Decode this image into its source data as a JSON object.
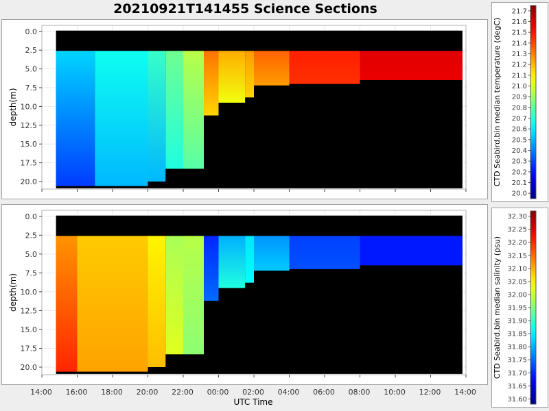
{
  "title": "20210921T141455 Science Sections",
  "x_axis_label": "UTC Time",
  "chart_data": [
    {
      "type": "heatmap",
      "ylabel": "depth(m)",
      "ylim": [
        21.0,
        -0.8
      ],
      "y_ticks": [
        "0.0",
        "2.5",
        "5.0",
        "7.5",
        "10.0",
        "12.5",
        "15.0",
        "17.5",
        "20.0"
      ],
      "x_ticks": [
        "14:00",
        "16:00",
        "18:00",
        "20:00",
        "22:00",
        "00:00",
        "02:00",
        "04:00",
        "06:00",
        "08:00",
        "10:00",
        "12:00",
        "14:00"
      ],
      "colorbar_label": "CTD Seabird.bin median temperature (degC)",
      "colorbar_ticks": [
        "20.0",
        "20.1",
        "20.2",
        "20.3",
        "20.4",
        "20.5",
        "20.6",
        "20.7",
        "20.8",
        "20.9",
        "21.0",
        "21.1",
        "21.2",
        "21.3",
        "21.4",
        "21.5",
        "21.6",
        "21.7"
      ],
      "color_range": [
        19.95,
        21.75
      ],
      "segments": [
        {
          "start": "14:48",
          "end": "17:00",
          "v_top": 20.55,
          "v_bot": 20.28,
          "max_depth": 20.6
        },
        {
          "start": "17:00",
          "end": "20:00",
          "v_top": 20.65,
          "v_bot": 20.5,
          "max_depth": 20.6
        },
        {
          "start": "20:00",
          "end": "21:00",
          "v_top": 20.72,
          "v_bot": 20.5,
          "max_depth": 20.0
        },
        {
          "start": "21:00",
          "end": "22:00",
          "v_top": 20.82,
          "v_bot": 20.68,
          "max_depth": 18.3
        },
        {
          "start": "22:00",
          "end": "23:10",
          "v_top": 20.95,
          "v_bot": 20.78,
          "max_depth": 18.3
        },
        {
          "start": "23:10",
          "end": "00:00",
          "v_top": 21.32,
          "v_bot": 21.15,
          "max_depth": 11.2
        },
        {
          "start": "00:00",
          "end": "01:30",
          "v_top": 21.22,
          "v_bot": 21.05,
          "max_depth": 9.5
        },
        {
          "start": "01:30",
          "end": "02:00",
          "v_top": 21.25,
          "v_bot": 21.15,
          "max_depth": 8.8
        },
        {
          "start": "02:00",
          "end": "04:00",
          "v_top": 21.35,
          "v_bot": 21.25,
          "max_depth": 7.2
        },
        {
          "start": "04:00",
          "end": "08:00",
          "v_top": 21.47,
          "v_bot": 21.44,
          "max_depth": 7.0
        },
        {
          "start": "08:00",
          "end": "13:48",
          "v_top": 21.58,
          "v_bot": 21.56,
          "max_depth": 6.5
        }
      ]
    },
    {
      "type": "heatmap",
      "ylabel": "depth(m)",
      "ylim": [
        21.0,
        -0.8
      ],
      "y_ticks": [
        "0.0",
        "2.5",
        "5.0",
        "7.5",
        "10.0",
        "12.5",
        "15.0",
        "17.5",
        "20.0"
      ],
      "x_ticks": [
        "14:00",
        "16:00",
        "18:00",
        "20:00",
        "22:00",
        "00:00",
        "02:00",
        "04:00",
        "06:00",
        "08:00",
        "10:00",
        "12:00",
        "14:00"
      ],
      "colorbar_label": "CTD Seabird.bin median salinity (psu)",
      "colorbar_ticks": [
        "31.60",
        "31.65",
        "31.70",
        "31.75",
        "31.80",
        "31.85",
        "31.90",
        "31.95",
        "32.00",
        "32.05",
        "32.10",
        "32.15",
        "32.20",
        "32.25",
        "32.30"
      ],
      "color_range": [
        31.58,
        32.32
      ],
      "segments": [
        {
          "start": "14:48",
          "end": "16:00",
          "v_top": 32.12,
          "v_bot": 32.2,
          "max_depth": 20.6
        },
        {
          "start": "16:00",
          "end": "20:00",
          "v_top": 32.08,
          "v_bot": 32.11,
          "max_depth": 20.6
        },
        {
          "start": "20:00",
          "end": "21:00",
          "v_top": 32.05,
          "v_bot": 32.09,
          "max_depth": 20.0
        },
        {
          "start": "21:00",
          "end": "22:00",
          "v_top": 31.98,
          "v_bot": 32.02,
          "max_depth": 18.3
        },
        {
          "start": "22:00",
          "end": "23:10",
          "v_top": 31.99,
          "v_bot": 31.96,
          "max_depth": 18.3
        },
        {
          "start": "23:10",
          "end": "00:00",
          "v_top": 31.7,
          "v_bot": 31.75,
          "max_depth": 11.2
        },
        {
          "start": "00:00",
          "end": "01:30",
          "v_top": 31.8,
          "v_bot": 31.88,
          "max_depth": 9.5
        },
        {
          "start": "01:30",
          "end": "02:00",
          "v_top": 31.84,
          "v_bot": 31.86,
          "max_depth": 8.8
        },
        {
          "start": "02:00",
          "end": "04:00",
          "v_top": 31.78,
          "v_bot": 31.82,
          "max_depth": 7.2
        },
        {
          "start": "04:00",
          "end": "08:00",
          "v_top": 31.72,
          "v_bot": 31.73,
          "max_depth": 7.0
        },
        {
          "start": "08:00",
          "end": "13:48",
          "v_top": 31.69,
          "v_bot": 31.69,
          "max_depth": 6.5
        }
      ]
    }
  ]
}
